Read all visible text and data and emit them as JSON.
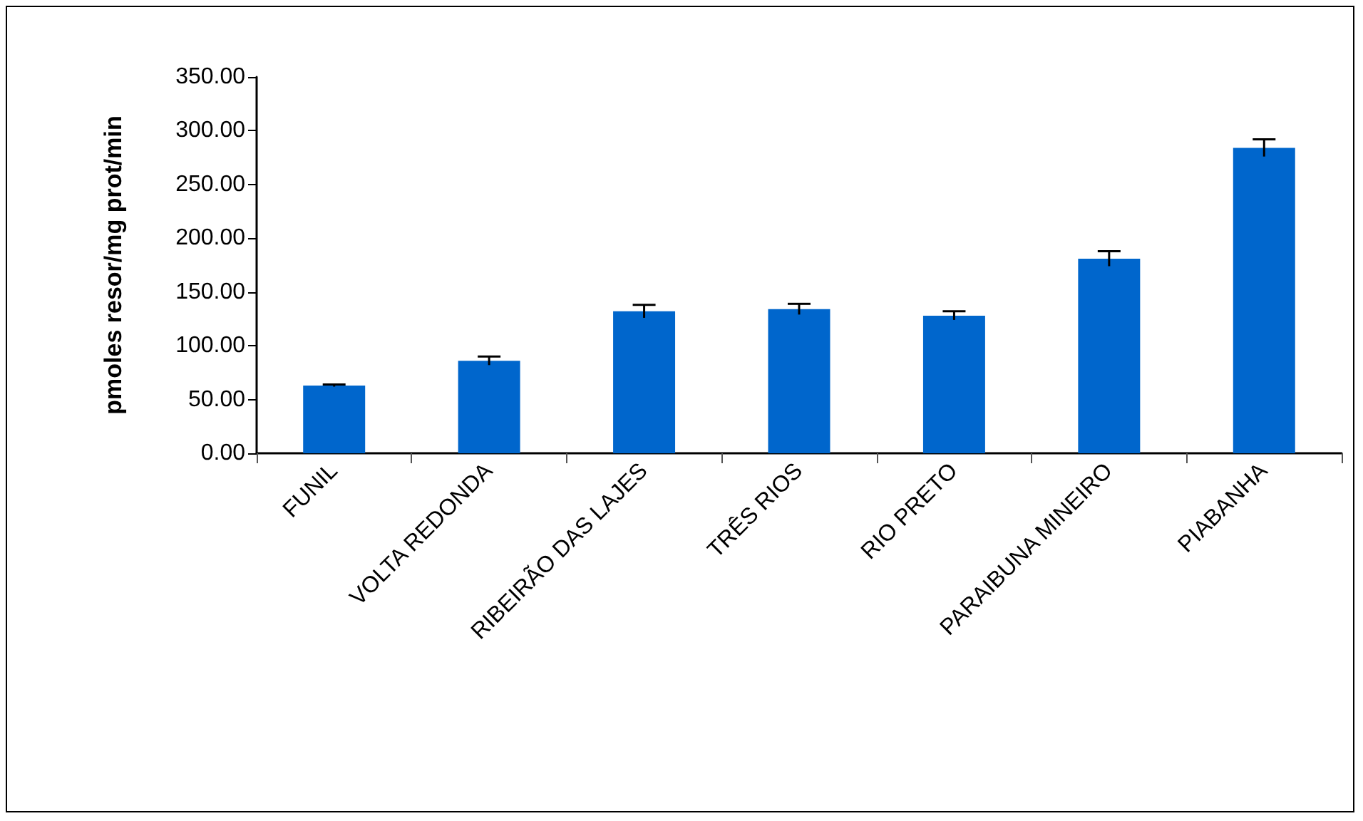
{
  "chart_data": {
    "type": "bar",
    "ylabel": "pmoles resor/mg prot/min",
    "categories": [
      "FUNIL",
      "VOLTA REDONDA",
      "RIBEIRÃO DAS LAJES",
      "TRÊS RIOS",
      "RIO PRETO",
      "PARAIBUNA MINEIRO",
      "PIABANHA"
    ],
    "values": [
      63,
      86,
      132,
      134,
      128,
      181,
      284
    ],
    "errors": [
      1,
      4,
      6,
      5,
      4,
      7,
      8
    ],
    "color": "#0066cc",
    "ylim": [
      0,
      350
    ],
    "yticks": [
      {
        "value": 0,
        "label": "0.00"
      },
      {
        "value": 50,
        "label": "50.00"
      },
      {
        "value": 100,
        "label": "100.00"
      },
      {
        "value": 150,
        "label": "150.00"
      },
      {
        "value": 200,
        "label": "200.00"
      },
      {
        "value": 250,
        "label": "250.00"
      },
      {
        "value": 300,
        "label": "300.00"
      },
      {
        "value": 350,
        "label": "350.00"
      }
    ],
    "grid": false
  }
}
